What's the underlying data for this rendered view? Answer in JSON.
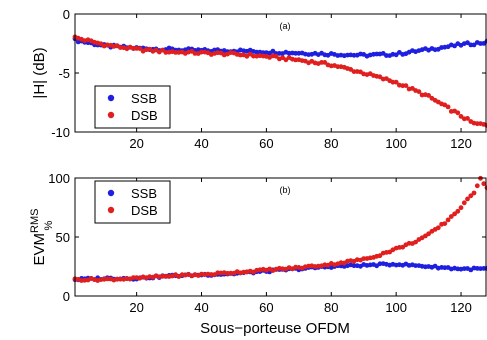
{
  "chart_data": [
    {
      "type": "scatter",
      "panel_label": "(a)",
      "ylabel": "|H| (dB)",
      "xlim": [
        1,
        128
      ],
      "ylim": [
        -10,
        0
      ],
      "xticks": [
        20,
        40,
        60,
        80,
        100,
        120
      ],
      "yticks": [
        -10,
        -5,
        0
      ],
      "legend_position": "bottom-left",
      "series": [
        {
          "name": "SSB",
          "color": "#1f1fe0",
          "anchors": [
            [
              1,
              -2.2
            ],
            [
              10,
              -2.7
            ],
            [
              20,
              -2.9
            ],
            [
              30,
              -3.0
            ],
            [
              40,
              -3.1
            ],
            [
              50,
              -3.1
            ],
            [
              60,
              -3.2
            ],
            [
              70,
              -3.3
            ],
            [
              80,
              -3.4
            ],
            [
              90,
              -3.5
            ],
            [
              100,
              -3.4
            ],
            [
              110,
              -3.0
            ],
            [
              120,
              -2.6
            ],
            [
              128,
              -2.4
            ]
          ]
        },
        {
          "name": "DSB",
          "color": "#e01f1f",
          "anchors": [
            [
              1,
              -2.0
            ],
            [
              10,
              -2.6
            ],
            [
              20,
              -3.0
            ],
            [
              30,
              -3.2
            ],
            [
              40,
              -3.3
            ],
            [
              50,
              -3.4
            ],
            [
              60,
              -3.6
            ],
            [
              70,
              -3.9
            ],
            [
              80,
              -4.3
            ],
            [
              90,
              -5.0
            ],
            [
              100,
              -5.8
            ],
            [
              110,
              -7.0
            ],
            [
              118,
              -8.3
            ],
            [
              124,
              -9.3
            ],
            [
              128,
              -9.4
            ]
          ]
        }
      ]
    },
    {
      "type": "scatter",
      "panel_label": "(b)",
      "ylabel_main": "EVM",
      "ylabel_sup": "RMS",
      "ylabel_sub": "%",
      "xlabel": "Sous−porteuse OFDM",
      "xlim": [
        1,
        128
      ],
      "ylim": [
        0,
        100
      ],
      "xticks": [
        20,
        40,
        60,
        80,
        100,
        120
      ],
      "yticks": [
        0,
        50,
        100
      ],
      "legend_position": "top-left",
      "series": [
        {
          "name": "SSB",
          "color": "#1f1fe0",
          "anchors": [
            [
              1,
              14
            ],
            [
              10,
              15
            ],
            [
              20,
              15
            ],
            [
              30,
              17
            ],
            [
              40,
              18
            ],
            [
              50,
              19
            ],
            [
              60,
              21
            ],
            [
              70,
              23
            ],
            [
              80,
              25
            ],
            [
              90,
              26
            ],
            [
              100,
              27
            ],
            [
              110,
              25
            ],
            [
              120,
              23
            ],
            [
              128,
              23
            ]
          ]
        },
        {
          "name": "DSB",
          "color": "#e01f1f",
          "anchors": [
            [
              1,
              14
            ],
            [
              10,
              14
            ],
            [
              20,
              15
            ],
            [
              30,
              17
            ],
            [
              40,
              18
            ],
            [
              50,
              20
            ],
            [
              60,
              22
            ],
            [
              70,
              24
            ],
            [
              80,
              27
            ],
            [
              90,
              31
            ],
            [
              95,
              35
            ],
            [
              100,
              40
            ],
            [
              105,
              45
            ],
            [
              110,
              52
            ],
            [
              115,
              62
            ],
            [
              120,
              75
            ],
            [
              124,
              88
            ],
            [
              126,
              100
            ],
            [
              128,
              92
            ]
          ]
        }
      ]
    }
  ]
}
